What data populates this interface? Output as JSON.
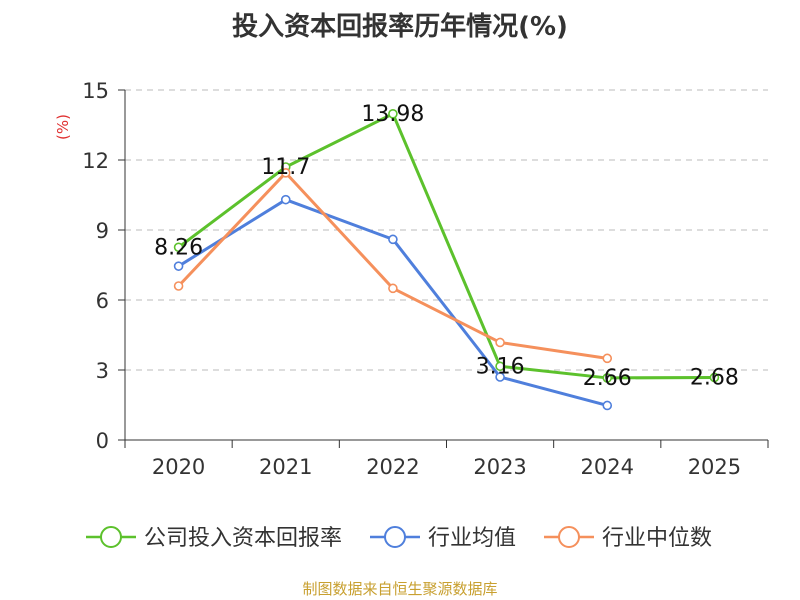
{
  "chart_data": {
    "type": "line",
    "title": "投入资本回报率历年情况(%)",
    "ylabel": "(%)",
    "xlabel": "",
    "ylim": [
      0,
      15
    ],
    "yticks": [
      0,
      3,
      6,
      9,
      12,
      15
    ],
    "categories": [
      "2020",
      "2021",
      "2022",
      "2023",
      "2024",
      "2025"
    ],
    "grid": true,
    "legend_position": "bottom",
    "series": [
      {
        "name": "公司投入资本回报率",
        "color": "#5cc12c",
        "values": [
          8.26,
          11.7,
          13.98,
          3.16,
          2.66,
          2.68
        ],
        "labels": [
          "8.26",
          "11.7",
          "13.98",
          "3.16",
          "2.66",
          "2.68"
        ]
      },
      {
        "name": "行业均值",
        "color": "#4f7fdc",
        "values": [
          7.45,
          10.3,
          8.6,
          2.7,
          1.48,
          null
        ],
        "labels": []
      },
      {
        "name": "行业中位数",
        "color": "#f5905c",
        "values": [
          6.6,
          11.45,
          6.5,
          4.18,
          3.5,
          null
        ],
        "labels": []
      }
    ]
  },
  "footer": "制图数据来自恒生聚源数据库",
  "colors": {
    "axis": "#333333",
    "grid": "#bbbbbb",
    "ylabel": "#e03030",
    "footer": "#c8a030"
  }
}
